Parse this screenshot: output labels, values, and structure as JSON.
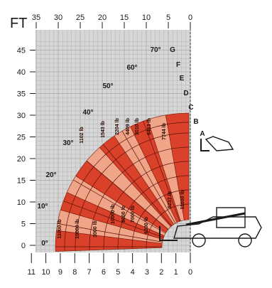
{
  "chart_data": {
    "type": "load-chart",
    "unit_label": "FT",
    "x_top_ticks": [
      "35",
      "30",
      "25",
      "20",
      "15",
      "10",
      "5",
      "0"
    ],
    "x_bottom_ticks": [
      "11",
      "10",
      "9",
      "8",
      "7",
      "6",
      "5",
      "4",
      "3",
      "2",
      "1",
      "0"
    ],
    "y_ticks": [
      "0",
      "5",
      "10",
      "15",
      "20",
      "25",
      "30",
      "35",
      "40",
      "45"
    ],
    "x_top_range_ft": [
      0,
      35
    ],
    "y_range_ft": [
      0,
      47
    ],
    "grid": true,
    "boom_angles": [
      "0°",
      "10°",
      "20°",
      "30°",
      "40°",
      "50°",
      "60°",
      "70°"
    ],
    "extension_zones": [
      "A",
      "B",
      "C",
      "D",
      "E",
      "F",
      "G"
    ],
    "capacities": [
      "11000 lb",
      "10000 lb",
      "1000 lb",
      "10000 lb",
      "8000 lb",
      "7000 lb",
      "6200 lb",
      "5237 lb",
      "11000 lb",
      "7744 lb",
      "6413 lb",
      "3010 lb",
      "4409 lb",
      "2204 lb",
      "1543 lb",
      "1102 lb"
    ],
    "colors": {
      "grid_background": "#d6d6d6",
      "grid_line": "#a9a9a9",
      "zone_dark": "#d9412a",
      "zone_light": "#f0a488"
    }
  }
}
